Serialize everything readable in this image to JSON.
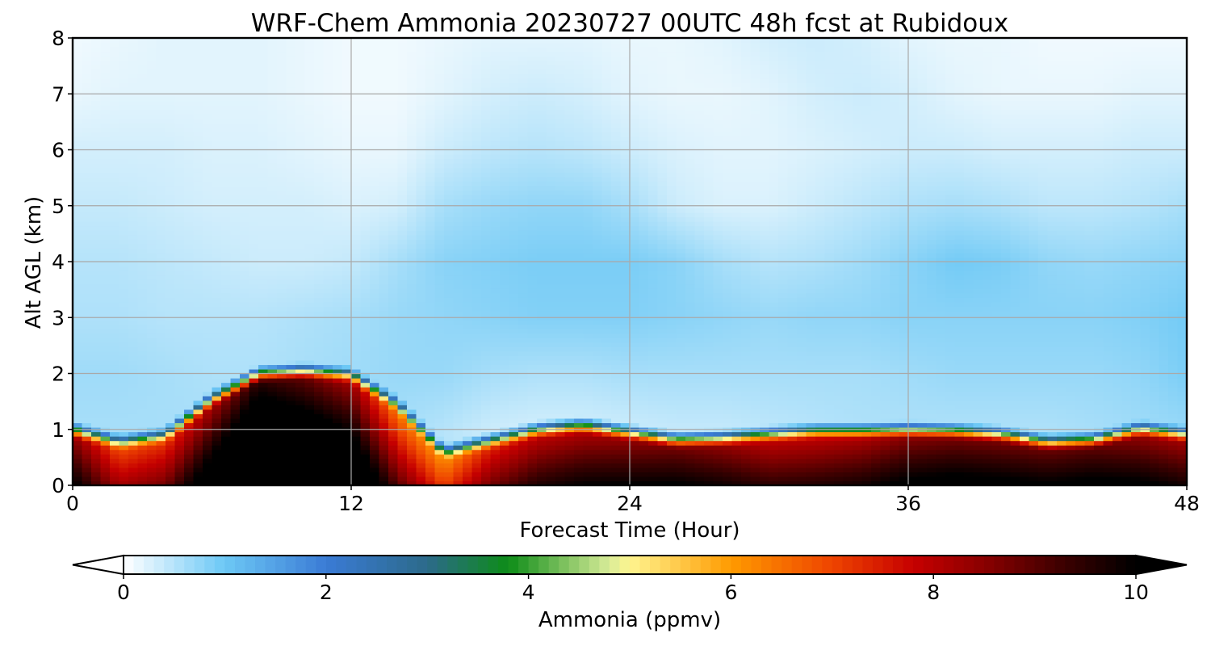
{
  "chart_data": {
    "type": "heatmap",
    "title": "WRF-Chem Ammonia  20230727 00UTC 48h fcst at Rubidoux",
    "xlabel": "Forecast Time (Hour)",
    "ylabel": "Alt AGL (km)",
    "xlim": [
      0,
      48
    ],
    "ylim": [
      0,
      8
    ],
    "x_ticks": [
      0,
      12,
      24,
      36,
      48
    ],
    "y_ticks": [
      0,
      1,
      2,
      3,
      4,
      5,
      6,
      7,
      8
    ],
    "grid": true,
    "colorbar": {
      "label": "Ammonia  (ppmv)",
      "ticks": [
        0,
        2,
        4,
        6,
        8,
        10
      ],
      "range": [
        0,
        10
      ],
      "extend": "both",
      "placement": "bottom",
      "colors": [
        {
          "v": 0,
          "c": "#ffffff"
        },
        {
          "v": 1,
          "c": "#6cc8f5"
        },
        {
          "v": 2,
          "c": "#3a7bd5"
        },
        {
          "v": 3,
          "c": "#2c6a8a"
        },
        {
          "v": 3.8,
          "c": "#0d8c18"
        },
        {
          "v": 4.8,
          "c": "#d8ec98"
        },
        {
          "v": 5.0,
          "c": "#fff58f"
        },
        {
          "v": 6.0,
          "c": "#ff9a00"
        },
        {
          "v": 7.0,
          "c": "#ee4400"
        },
        {
          "v": 7.8,
          "c": "#c60000"
        },
        {
          "v": 8.5,
          "c": "#8a0000"
        },
        {
          "v": 9.3,
          "c": "#3a0000"
        },
        {
          "v": 10,
          "c": "#000000"
        }
      ],
      "under_color": "#ffffff",
      "over_color": "#000000"
    },
    "hours": [
      0,
      2,
      4,
      6,
      8,
      10,
      12,
      14,
      16,
      18,
      20,
      22,
      24,
      26,
      28,
      30,
      32,
      34,
      36,
      38,
      40,
      42,
      44,
      46,
      48
    ],
    "boundary_layer_top_km": [
      1.0,
      0.78,
      0.9,
      1.55,
      2.0,
      2.05,
      1.98,
      1.45,
      0.6,
      0.8,
      1.0,
      1.08,
      0.95,
      0.82,
      0.85,
      0.92,
      0.98,
      0.98,
      1.0,
      0.98,
      0.92,
      0.78,
      0.82,
      1.02,
      0.92
    ],
    "boundary_layer_value_ppmv": [
      8.5,
      7.0,
      7.3,
      8.3,
      9.6,
      9.0,
      8.3,
      6.5,
      6.2,
      7.5,
      8.0,
      8.2,
      8.5,
      8.8,
      8.5,
      8.0,
      8.0,
      8.2,
      8.6,
      8.8,
      8.8,
      8.9,
      9.0,
      8.5,
      8.3
    ],
    "free_troposphere_levels_km": [
      0,
      1,
      2,
      3,
      4,
      5,
      6,
      7,
      8
    ],
    "free_troposphere_values_ppmv": [
      [
        0.3,
        0.3,
        0.3,
        0.3,
        0.3,
        0.3,
        0.3,
        0.3,
        0.5,
        0.5,
        0.6,
        0.6,
        0.7,
        0.6,
        0.5,
        0.5,
        0.5,
        0.6,
        0.7,
        0.7,
        0.7,
        0.6,
        0.6,
        0.6,
        0.6
      ],
      [
        0.6,
        0.6,
        0.6,
        0.6,
        0.6,
        0.6,
        0.6,
        0.6,
        0.5,
        0.35,
        0.3,
        0.3,
        0.35,
        0.4,
        0.4,
        0.45,
        0.5,
        0.55,
        0.55,
        0.55,
        0.55,
        0.55,
        0.6,
        0.65,
        0.7
      ],
      [
        0.65,
        0.65,
        0.6,
        0.55,
        0.55,
        0.6,
        0.65,
        0.7,
        0.7,
        0.6,
        0.55,
        0.55,
        0.6,
        0.6,
        0.6,
        0.6,
        0.6,
        0.6,
        0.65,
        0.7,
        0.7,
        0.7,
        0.7,
        0.75,
        0.9
      ],
      [
        0.55,
        0.55,
        0.5,
        0.5,
        0.5,
        0.55,
        0.6,
        0.7,
        0.75,
        0.8,
        0.85,
        0.85,
        0.85,
        0.8,
        0.75,
        0.7,
        0.75,
        0.75,
        0.8,
        0.8,
        0.8,
        0.8,
        0.8,
        0.85,
        0.95
      ],
      [
        0.5,
        0.5,
        0.45,
        0.4,
        0.35,
        0.35,
        0.4,
        0.6,
        0.8,
        0.85,
        0.9,
        0.9,
        0.9,
        0.8,
        0.6,
        0.5,
        0.55,
        0.65,
        0.8,
        0.95,
        0.9,
        0.75,
        0.7,
        0.75,
        0.8
      ],
      [
        0.4,
        0.4,
        0.35,
        0.3,
        0.3,
        0.3,
        0.25,
        0.3,
        0.6,
        0.7,
        0.75,
        0.75,
        0.6,
        0.35,
        0.25,
        0.25,
        0.35,
        0.45,
        0.55,
        0.6,
        0.55,
        0.45,
        0.45,
        0.5,
        0.6
      ],
      [
        0.3,
        0.3,
        0.3,
        0.25,
        0.25,
        0.2,
        0.15,
        0.15,
        0.35,
        0.45,
        0.5,
        0.45,
        0.35,
        0.25,
        0.2,
        0.2,
        0.25,
        0.3,
        0.35,
        0.35,
        0.3,
        0.3,
        0.3,
        0.35,
        0.35
      ],
      [
        0.15,
        0.2,
        0.2,
        0.2,
        0.2,
        0.15,
        0.1,
        0.1,
        0.2,
        0.3,
        0.35,
        0.3,
        0.2,
        0.15,
        0.15,
        0.2,
        0.3,
        0.35,
        0.3,
        0.2,
        0.15,
        0.15,
        0.15,
        0.2,
        0.2
      ],
      [
        0.1,
        0.15,
        0.2,
        0.2,
        0.2,
        0.15,
        0.1,
        0.1,
        0.15,
        0.2,
        0.2,
        0.2,
        0.15,
        0.15,
        0.2,
        0.3,
        0.35,
        0.3,
        0.2,
        0.15,
        0.15,
        0.1,
        0.1,
        0.1,
        0.1
      ]
    ]
  }
}
